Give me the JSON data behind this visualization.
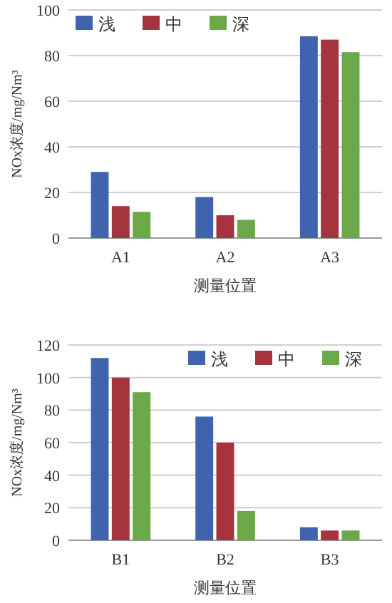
{
  "chart_data": [
    {
      "type": "bar",
      "xlabel": "测量位置",
      "ylabel": "NOx浓度/mg/Nm³",
      "categories": [
        "A1",
        "A2",
        "A3"
      ],
      "series": [
        {
          "name": "浅",
          "color": "#3f63ad",
          "values": [
            29,
            18,
            88.5
          ]
        },
        {
          "name": "中",
          "color": "#a5343f",
          "values": [
            14,
            10,
            87
          ]
        },
        {
          "name": "深",
          "color": "#6aa84a",
          "values": [
            11.5,
            8,
            81.5
          ]
        }
      ],
      "ylim": [
        0,
        100
      ],
      "yticks": [
        0,
        20,
        40,
        60,
        80,
        100
      ],
      "grid": "y",
      "legend": "top left"
    },
    {
      "type": "bar",
      "xlabel": "测量位置",
      "ylabel": "NOx浓度/mg/Nm³",
      "categories": [
        "B1",
        "B2",
        "B3"
      ],
      "series": [
        {
          "name": "浅",
          "color": "#3f63ad",
          "values": [
            112,
            76,
            8
          ]
        },
        {
          "name": "中",
          "color": "#a5343f",
          "values": [
            100,
            60,
            6
          ]
        },
        {
          "name": "深",
          "color": "#6aa84a",
          "values": [
            91,
            18,
            6
          ]
        }
      ],
      "ylim": [
        0,
        120
      ],
      "yticks": [
        0,
        20,
        40,
        60,
        80,
        100,
        120
      ],
      "grid": "y",
      "legend": "top right"
    }
  ]
}
